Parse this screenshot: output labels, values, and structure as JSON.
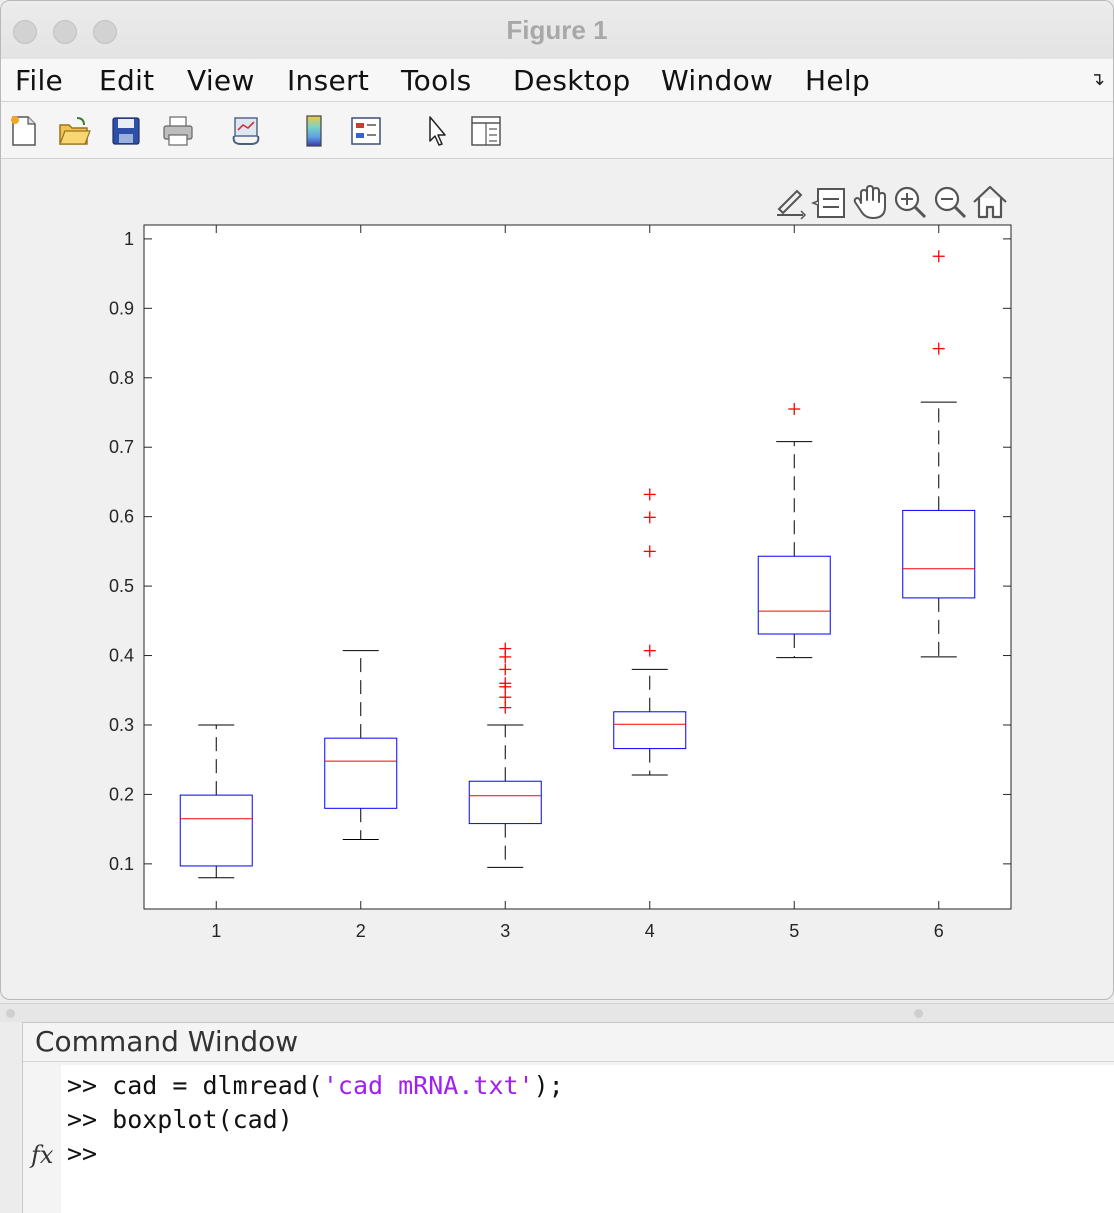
{
  "window": {
    "title": "Figure 1"
  },
  "menu": [
    "File",
    "Edit",
    "View",
    "Insert",
    "Tools",
    "Desktop",
    "Window",
    "Help"
  ],
  "toolbar_icons": [
    "new-figure-icon",
    "open-file-icon",
    "save-icon",
    "print-icon",
    "link-plot-icon",
    "colorbar-icon",
    "legend-icon",
    "edit-plot-pointer-icon",
    "property-inspector-icon"
  ],
  "axes_toolbar_icons": [
    "export-icon",
    "data-tips-icon",
    "pan-hand-icon",
    "zoom-in-icon",
    "zoom-out-icon",
    "restore-view-home-icon"
  ],
  "colors": {
    "box": "#0000ff",
    "median": "#ff0000",
    "outlier": "#ff0000",
    "whisker": "#000000"
  },
  "chart_data": {
    "type": "boxplot",
    "categories": [
      "1",
      "2",
      "3",
      "4",
      "5",
      "6"
    ],
    "ylim": [
      0.035,
      1.02
    ],
    "yticks": [
      "0.1",
      "0.2",
      "0.3",
      "0.4",
      "0.5",
      "0.6",
      "0.7",
      "0.8",
      "0.9",
      "1"
    ],
    "ytick_values": [
      0.1,
      0.2,
      0.3,
      0.4,
      0.5,
      0.6,
      0.7,
      0.8,
      0.9,
      1.0
    ],
    "grid": false,
    "boxes": [
      {
        "category": "1",
        "lower_whisker": 0.08,
        "q1": 0.097,
        "median": 0.165,
        "q3": 0.199,
        "upper_whisker": 0.3,
        "outliers": []
      },
      {
        "category": "2",
        "lower_whisker": 0.135,
        "q1": 0.18,
        "median": 0.248,
        "q3": 0.281,
        "upper_whisker": 0.407,
        "outliers": []
      },
      {
        "category": "3",
        "lower_whisker": 0.095,
        "q1": 0.158,
        "median": 0.198,
        "q3": 0.219,
        "upper_whisker": 0.3,
        "outliers": [
          0.41,
          0.398,
          0.38,
          0.36,
          0.355,
          0.34,
          0.325
        ]
      },
      {
        "category": "4",
        "lower_whisker": 0.228,
        "q1": 0.266,
        "median": 0.301,
        "q3": 0.319,
        "upper_whisker": 0.38,
        "outliers": [
          0.632,
          0.599,
          0.55,
          0.407
        ]
      },
      {
        "category": "5",
        "lower_whisker": 0.397,
        "q1": 0.431,
        "median": 0.464,
        "q3": 0.543,
        "upper_whisker": 0.708,
        "outliers": [
          0.755
        ]
      },
      {
        "category": "6",
        "lower_whisker": 0.398,
        "q1": 0.483,
        "median": 0.525,
        "q3": 0.609,
        "upper_whisker": 0.765,
        "outliers": [
          0.975,
          0.842
        ]
      }
    ]
  },
  "command_window": {
    "title": "Command Window",
    "lines": [
      {
        "prompt": ">> ",
        "code_before": "cad = dlmread(",
        "string": "'cad mRNA.txt'",
        "code_after": ");"
      },
      {
        "prompt": ">> ",
        "code_before": "boxplot(cad)",
        "string": "",
        "code_after": ""
      },
      {
        "prompt": ">> ",
        "code_before": "",
        "string": "",
        "code_after": ""
      }
    ],
    "fx_label": "fx"
  }
}
